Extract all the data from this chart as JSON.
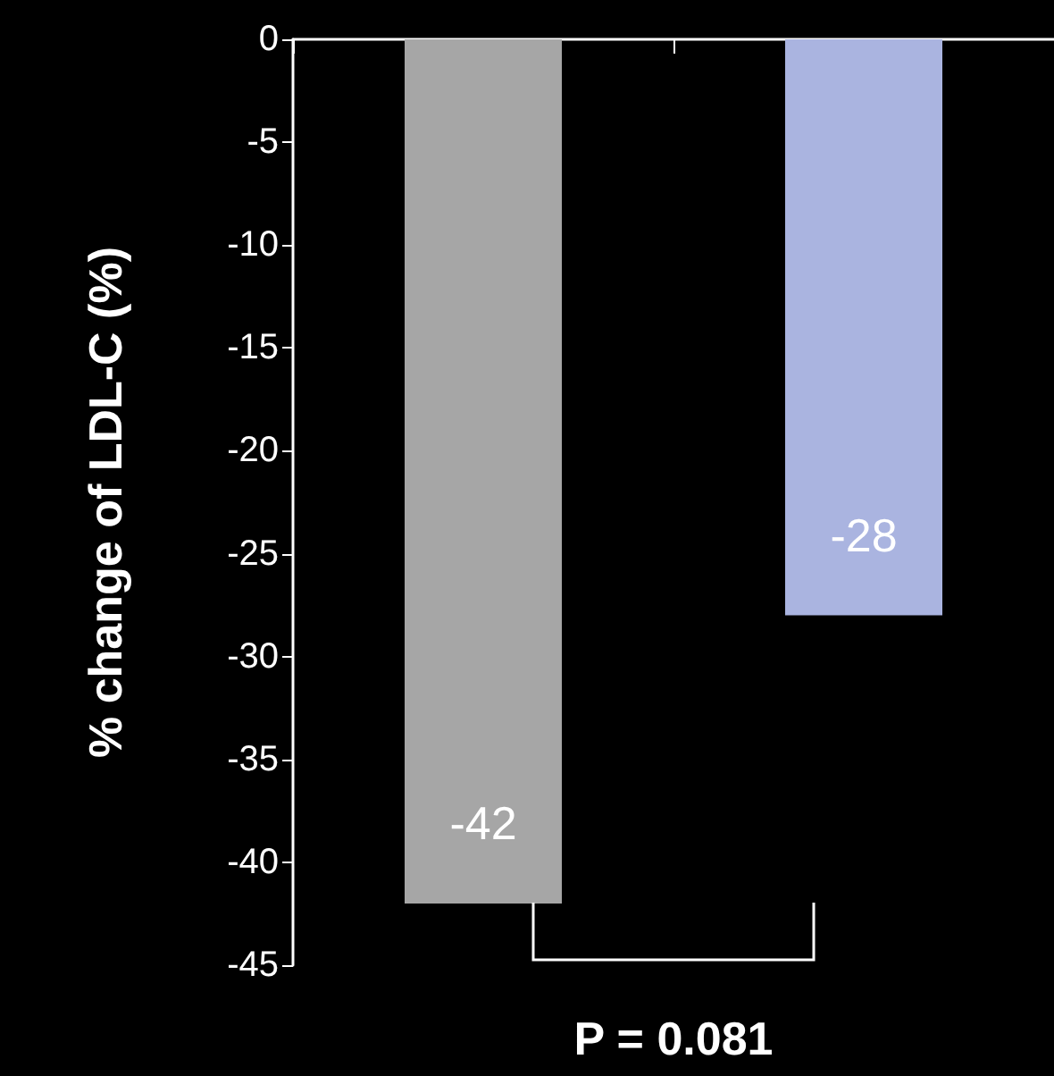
{
  "chart_data": {
    "type": "bar",
    "ylabel": "% change of LDL-C (%)",
    "categories": [
      null,
      null
    ],
    "values": [
      -42,
      -28
    ],
    "colors": [
      "#a6a6a6",
      "#aab4e0"
    ],
    "ylim": [
      -45,
      0
    ],
    "yticks": [
      0,
      -5,
      -10,
      -15,
      -20,
      -25,
      -30,
      -35,
      -40,
      -45
    ],
    "grid": false,
    "data_labels": true,
    "annotations": [
      "P = 0.081"
    ]
  }
}
